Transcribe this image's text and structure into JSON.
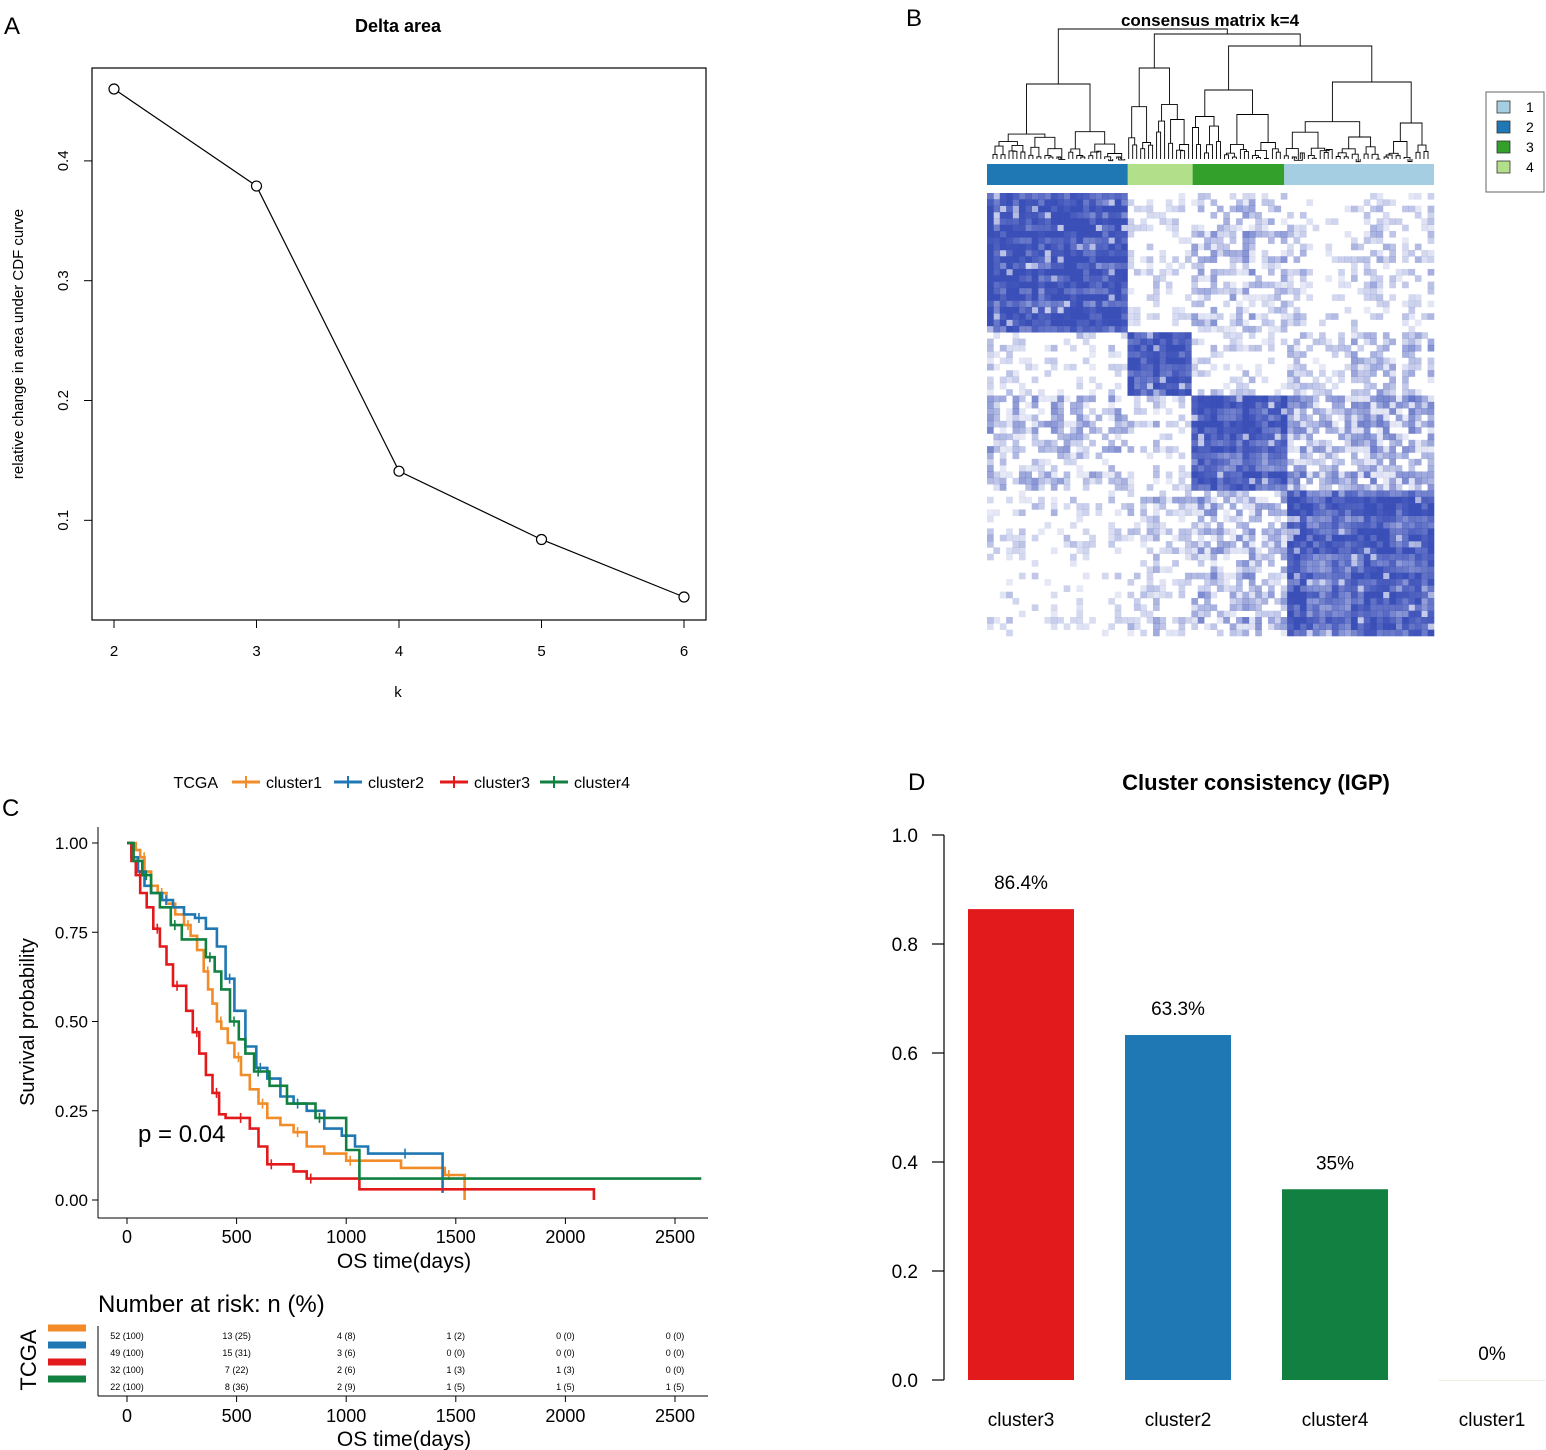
{
  "panel_labels": {
    "a": "A",
    "b": "B",
    "c": "C",
    "d": "D"
  },
  "colors": {
    "cluster1": "#F28C28",
    "cluster2": "#1F78B4",
    "cluster3": "#E31A1C",
    "cluster4": "#118040",
    "legend1": "#A6CEE3",
    "legend2": "#1F78B4",
    "legend3": "#33A02C",
    "legend4": "#B2DF8A",
    "heat": "#3A4FB8"
  },
  "chart_data": [
    {
      "id": "delta_area",
      "type": "line",
      "title": "Delta area",
      "xlabel": "k",
      "ylabel": "relative change in area under CDF curve",
      "x": [
        2,
        3,
        4,
        5,
        6
      ],
      "y": [
        0.46,
        0.379,
        0.141,
        0.084,
        0.036
      ],
      "xticks": [
        "2",
        "3",
        "4",
        "5",
        "6"
      ],
      "yticks": [
        "0.1",
        "0.2",
        "0.3",
        "0.4"
      ],
      "ylim": [
        0.02,
        0.48
      ]
    },
    {
      "id": "consensus_matrix",
      "type": "heatmap",
      "title": "consensus matrix k=4",
      "legend": [
        "1",
        "2",
        "3",
        "4"
      ],
      "cluster_bar_order": [
        "2",
        "4",
        "3",
        "1"
      ],
      "cluster_bar_fraction": [
        0.315,
        0.145,
        0.205,
        0.335
      ]
    },
    {
      "id": "km_survival",
      "type": "line",
      "legend_title": "TCGA",
      "legend": [
        "cluster1",
        "cluster2",
        "cluster3",
        "cluster4"
      ],
      "xlabel": "OS time(days)",
      "ylabel": "Survival probability",
      "xticks": [
        "0",
        "500",
        "1000",
        "1500",
        "2000",
        "2500"
      ],
      "yticks": [
        "0.00",
        "0.25",
        "0.50",
        "0.75",
        "1.00"
      ],
      "xlim": [
        -120,
        2620
      ],
      "ylim": [
        -0.05,
        1.04
      ],
      "annotation": "p = 0.04",
      "series": [
        {
          "name": "cluster1",
          "x": [
            0,
            40,
            60,
            80,
            110,
            140,
            180,
            220,
            260,
            290,
            320,
            350,
            370,
            390,
            410,
            430,
            460,
            490,
            520,
            560,
            600,
            640,
            700,
            760,
            820,
            900,
            1000,
            1100,
            1250,
            1450,
            1540
          ],
          "y": [
            1.0,
            0.98,
            0.96,
            0.92,
            0.88,
            0.86,
            0.83,
            0.8,
            0.77,
            0.74,
            0.7,
            0.64,
            0.59,
            0.55,
            0.5,
            0.48,
            0.44,
            0.4,
            0.35,
            0.31,
            0.27,
            0.23,
            0.21,
            0.19,
            0.15,
            0.13,
            0.11,
            0.11,
            0.09,
            0.07,
            0.0
          ]
        },
        {
          "name": "cluster2",
          "x": [
            0,
            20,
            50,
            80,
            110,
            160,
            210,
            260,
            310,
            360,
            410,
            450,
            490,
            540,
            590,
            640,
            700,
            760,
            820,
            900,
            980,
            1040,
            1100,
            1250,
            1440
          ],
          "y": [
            1.0,
            0.96,
            0.92,
            0.88,
            0.86,
            0.84,
            0.82,
            0.8,
            0.79,
            0.76,
            0.71,
            0.62,
            0.53,
            0.43,
            0.37,
            0.34,
            0.29,
            0.27,
            0.25,
            0.2,
            0.18,
            0.15,
            0.13,
            0.13,
            0.02
          ]
        },
        {
          "name": "cluster3",
          "x": [
            0,
            20,
            40,
            60,
            90,
            120,
            150,
            180,
            210,
            240,
            270,
            300,
            330,
            360,
            390,
            420,
            450,
            500,
            560,
            600,
            640,
            700,
            760,
            820,
            1060,
            2130
          ],
          "y": [
            1.0,
            0.95,
            0.91,
            0.86,
            0.82,
            0.76,
            0.71,
            0.66,
            0.6,
            0.6,
            0.53,
            0.47,
            0.41,
            0.35,
            0.3,
            0.24,
            0.23,
            0.23,
            0.2,
            0.15,
            0.1,
            0.1,
            0.08,
            0.06,
            0.03,
            0.0
          ]
        },
        {
          "name": "cluster4",
          "x": [
            0,
            30,
            70,
            110,
            150,
            200,
            250,
            300,
            360,
            400,
            430,
            470,
            510,
            540,
            580,
            650,
            730,
            860,
            1000,
            1060,
            2620
          ],
          "y": [
            1.0,
            0.95,
            0.91,
            0.86,
            0.82,
            0.77,
            0.73,
            0.73,
            0.68,
            0.64,
            0.59,
            0.5,
            0.45,
            0.41,
            0.36,
            0.32,
            0.27,
            0.23,
            0.14,
            0.06,
            0.06
          ]
        }
      ]
    },
    {
      "id": "igp_bars",
      "type": "bar",
      "title": "Cluster consistency (IGP)",
      "categories": [
        "cluster3",
        "cluster2",
        "cluster4",
        "cluster1"
      ],
      "values": [
        0.864,
        0.633,
        0.35,
        0.0
      ],
      "labels": [
        "86.4%",
        "63.3%",
        "35%",
        "0%"
      ],
      "yticks": [
        "0.0",
        "0.2",
        "0.4",
        "0.6",
        "0.8",
        "1.0"
      ],
      "ylim": [
        0,
        1.0
      ]
    }
  ],
  "risk_table": {
    "title": "Number at risk: n (%)",
    "strata_label": "TCGA",
    "xlabel": "OS time(days)",
    "xticks": [
      "0",
      "500",
      "1000",
      "1500",
      "2000",
      "2500"
    ],
    "rows": [
      [
        "52 (100)",
        "13 (25)",
        "4 (8)",
        "1 (2)",
        "0 (0)",
        "0 (0)"
      ],
      [
        "49 (100)",
        "15 (31)",
        "3 (6)",
        "0 (0)",
        "0 (0)",
        "0 (0)"
      ],
      [
        "32 (100)",
        "7 (22)",
        "2 (6)",
        "1 (3)",
        "1 (3)",
        "0 (0)"
      ],
      [
        "22 (100)",
        "8 (36)",
        "2 (9)",
        "1 (5)",
        "1 (5)",
        "1 (5)"
      ]
    ]
  }
}
